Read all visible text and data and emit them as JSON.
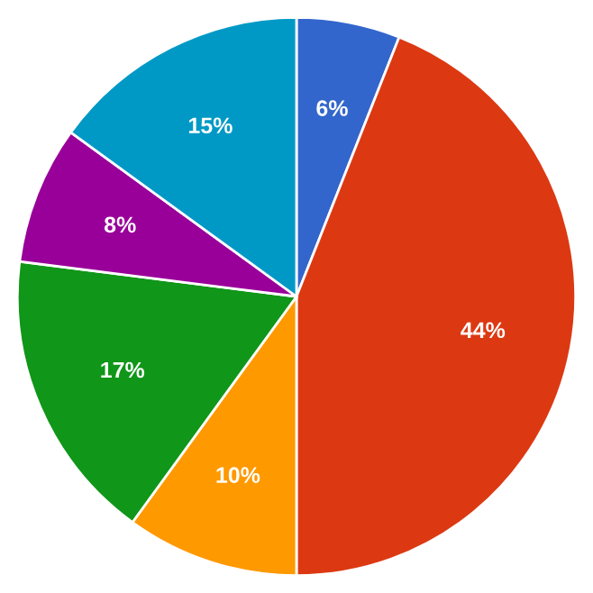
{
  "chart_data": {
    "type": "pie",
    "categories": [
      null,
      null,
      null,
      null,
      null,
      null
    ],
    "values": [
      6,
      44,
      10,
      17,
      8,
      15
    ],
    "colors": [
      "#3366cc",
      "#dc3912",
      "#ff9900",
      "#109618",
      "#990099",
      "#0099c6"
    ],
    "value_labels": [
      "6%",
      "44%",
      "10%",
      "17%",
      "8%",
      "15%"
    ]
  }
}
